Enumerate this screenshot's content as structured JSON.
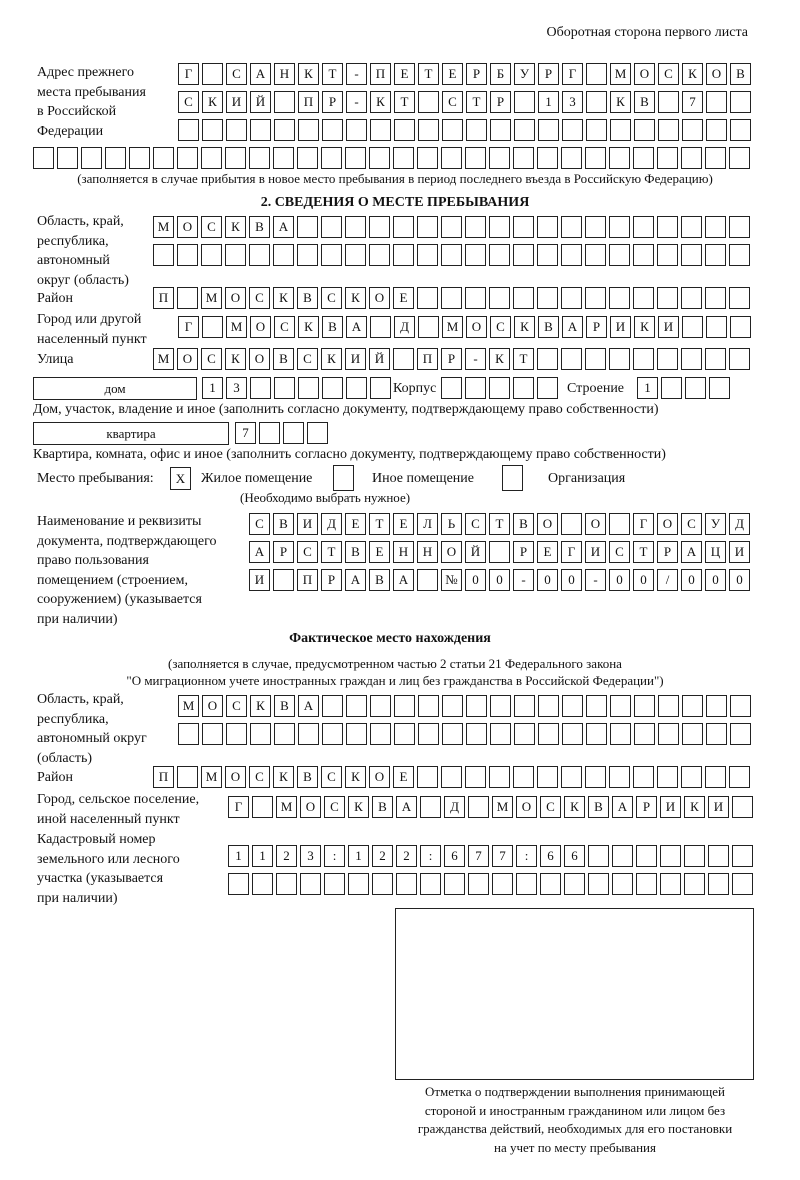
{
  "header": {
    "page_side": "Оборотная сторона первого листа"
  },
  "prev_address": {
    "label": [
      "Адрес прежнего",
      "места пребывания",
      "в Российской",
      "Федерации"
    ],
    "rows": [
      [
        "Г",
        "",
        "С",
        "А",
        "Н",
        "К",
        "Т",
        "-",
        "П",
        "Е",
        "Т",
        "Е",
        "Р",
        "Б",
        "У",
        "Р",
        "Г",
        "",
        "М",
        "О",
        "С",
        "К",
        "О",
        "В"
      ],
      [
        "С",
        "К",
        "И",
        "Й",
        "",
        "П",
        "Р",
        "-",
        "К",
        "Т",
        "",
        "С",
        "Т",
        "Р",
        "",
        "1",
        "3",
        "",
        "К",
        "В",
        "",
        "7",
        "",
        ""
      ],
      [
        "",
        "",
        "",
        "",
        "",
        "",
        "",
        "",
        "",
        "",
        "",
        "",
        "",
        "",
        "",
        "",
        "",
        "",
        "",
        "",
        "",
        "",
        "",
        ""
      ],
      [
        "",
        "",
        "",
        "",
        "",
        "",
        "",
        "",
        "",
        "",
        "",
        "",
        "",
        "",
        "",
        "",
        "",
        "",
        "",
        "",
        "",
        "",
        "",
        "",
        "",
        "",
        "",
        "",
        "",
        ""
      ]
    ],
    "note": "(заполняется в случае прибытия в новое место пребывания в период последнего въезда в Российскую Федерацию)"
  },
  "section2": {
    "title": "2. СВЕДЕНИЯ О МЕСТЕ ПРЕБЫВАНИЯ",
    "region_label": [
      "Область, край,",
      "республика,",
      "автономный",
      "округ (область)"
    ],
    "region_rows": [
      [
        "М",
        "О",
        "С",
        "К",
        "В",
        "А",
        "",
        "",
        "",
        "",
        "",
        "",
        "",
        "",
        "",
        "",
        "",
        "",
        "",
        "",
        "",
        "",
        "",
        "",
        ""
      ],
      [
        "",
        "",
        "",
        "",
        "",
        "",
        "",
        "",
        "",
        "",
        "",
        "",
        "",
        "",
        "",
        "",
        "",
        "",
        "",
        "",
        "",
        "",
        "",
        "",
        ""
      ]
    ],
    "district_label": "Район",
    "district_row": [
      "П",
      "",
      "М",
      "О",
      "С",
      "К",
      "В",
      "С",
      "К",
      "О",
      "Е",
      "",
      "",
      "",
      "",
      "",
      "",
      "",
      "",
      "",
      "",
      "",
      "",
      "",
      ""
    ],
    "city_label": [
      "Город или другой",
      "населенный пункт"
    ],
    "city_row": [
      "Г",
      "",
      "М",
      "О",
      "С",
      "К",
      "В",
      "А",
      "",
      "Д",
      "",
      "М",
      "О",
      "С",
      "К",
      "В",
      "А",
      "Р",
      "И",
      "К",
      "И",
      "",
      "",
      ""
    ],
    "street_label": "Улица",
    "street_row": [
      "М",
      "О",
      "С",
      "К",
      "О",
      "В",
      "С",
      "К",
      "И",
      "Й",
      "",
      "П",
      "Р",
      "-",
      "К",
      "Т",
      "",
      "",
      "",
      "",
      "",
      "",
      "",
      "",
      ""
    ],
    "house_type": "дом",
    "house_row": [
      "1",
      "3",
      "",
      "",
      "",
      "",
      "",
      ""
    ],
    "korpus_label": "Корпус",
    "korpus_row": [
      "",
      "",
      "",
      "",
      ""
    ],
    "building_label": "Строение",
    "building_row": [
      "1",
      "",
      "",
      ""
    ],
    "house_note": "Дом, участок, владение и иное (заполнить согласно документу, подтверждающему право собственности)",
    "flat_type": "квартира",
    "flat_row": [
      "7",
      "",
      "",
      ""
    ],
    "flat_note": "Квартира, комната, офис и иное (заполнить согласно документу, подтверждающему право собственности)",
    "place_label": "Место пребывания:",
    "place_options": [
      {
        "label": "Жилое помещение",
        "mark": "X"
      },
      {
        "label": "Иное помещение",
        "mark": ""
      },
      {
        "label": "Организация",
        "mark": ""
      }
    ],
    "place_note": "(Необходимо выбрать нужное)",
    "doc_label": [
      "Наименование и реквизиты",
      "документа, подтверждающего",
      "право пользования",
      "помещением (строением,",
      "сооружением) (указывается",
      "при наличии)"
    ],
    "doc_rows": [
      [
        "С",
        "В",
        "И",
        "Д",
        "Е",
        "Т",
        "Е",
        "Л",
        "Ь",
        "С",
        "Т",
        "В",
        "О",
        "",
        "О",
        "",
        "Г",
        "О",
        "С",
        "У",
        "Д"
      ],
      [
        "А",
        "Р",
        "С",
        "Т",
        "В",
        "Е",
        "Н",
        "Н",
        "О",
        "Й",
        "",
        "Р",
        "Е",
        "Г",
        "И",
        "С",
        "Т",
        "Р",
        "А",
        "Ц",
        "И"
      ],
      [
        "И",
        "",
        "П",
        "Р",
        "А",
        "В",
        "А",
        "",
        "№",
        "0",
        "0",
        "-",
        "0",
        "0",
        "-",
        "0",
        "0",
        "/",
        "0",
        "0",
        "0"
      ]
    ]
  },
  "actual": {
    "title": "Фактическое место нахождения",
    "note": [
      "(заполняется в случае, предусмотренном частью 2 статьи 21 Федерального закона",
      "\"О миграционном учете иностранных граждан и лиц без гражданства в Российской Федерации\")"
    ],
    "region_label": [
      "Область, край,",
      "республика,",
      "автономный округ",
      "(область)"
    ],
    "region_rows": [
      [
        "М",
        "О",
        "С",
        "К",
        "В",
        "А",
        "",
        "",
        "",
        "",
        "",
        "",
        "",
        "",
        "",
        "",
        "",
        "",
        "",
        "",
        "",
        "",
        "",
        ""
      ],
      [
        "",
        "",
        "",
        "",
        "",
        "",
        "",
        "",
        "",
        "",
        "",
        "",
        "",
        "",
        "",
        "",
        "",
        "",
        "",
        "",
        "",
        "",
        "",
        ""
      ]
    ],
    "district_label": "Район",
    "district_row": [
      "П",
      "",
      "М",
      "О",
      "С",
      "К",
      "В",
      "С",
      "К",
      "О",
      "Е",
      "",
      "",
      "",
      "",
      "",
      "",
      "",
      "",
      "",
      "",
      "",
      "",
      "",
      ""
    ],
    "city_label": [
      "Город, сельское поселение,",
      "иной населенный пункт"
    ],
    "city_row": [
      "Г",
      "",
      "М",
      "О",
      "С",
      "К",
      "В",
      "А",
      "",
      "Д",
      "",
      "М",
      "О",
      "С",
      "К",
      "В",
      "А",
      "Р",
      "И",
      "К",
      "И",
      ""
    ],
    "cadastral_label": [
      "Кадастровый номер",
      "земельного или лесного",
      "участка (указывается",
      "при наличии)"
    ],
    "cadastral_rows": [
      [
        "1",
        "1",
        "2",
        "3",
        ":",
        "1",
        "2",
        "2",
        ":",
        "6",
        "7",
        "7",
        ":",
        "6",
        "6",
        "",
        "",
        "",
        "",
        "",
        "",
        ""
      ],
      [
        "",
        "",
        "",
        "",
        "",
        "",
        "",
        "",
        "",
        "",
        "",
        "",
        "",
        "",
        "",
        "",
        "",
        "",
        "",
        "",
        "",
        ""
      ]
    ]
  },
  "confirmation": {
    "caption": [
      "Отметка о подтверждении выполнения принимающей",
      "стороной и иностранным гражданином или лицом без",
      "гражданства действий, необходимых для его постановки",
      "на учет по месту пребывания"
    ]
  }
}
